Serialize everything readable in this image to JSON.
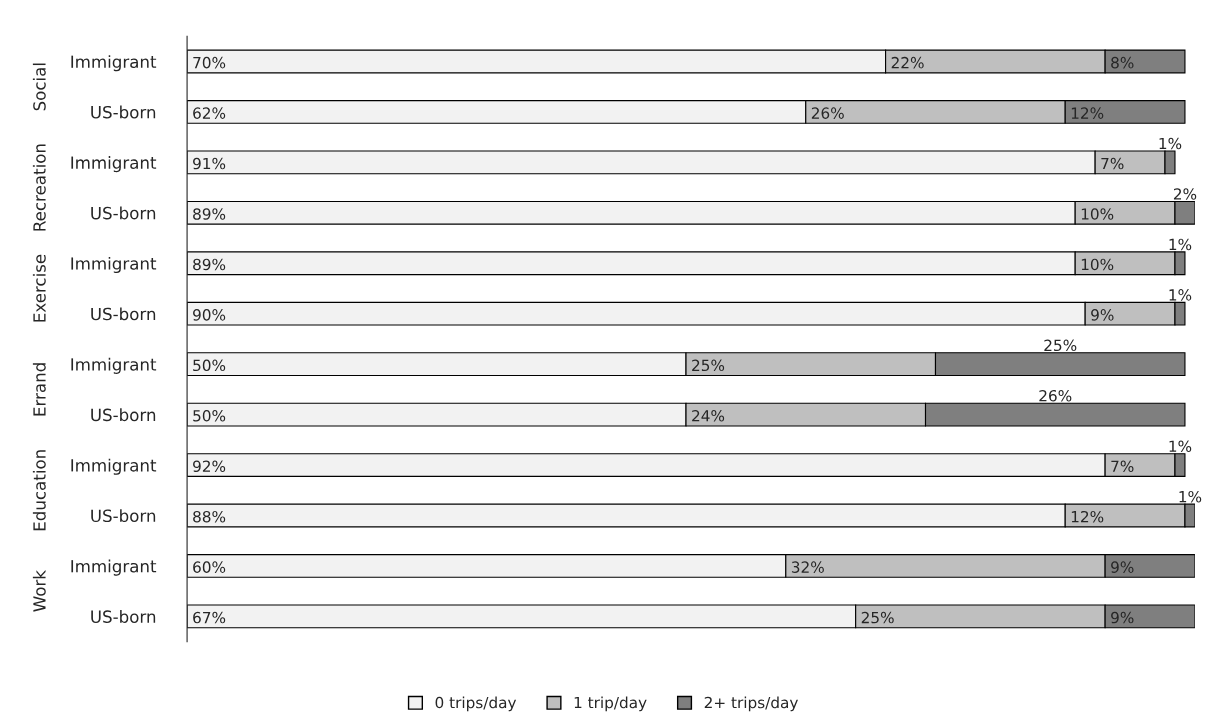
{
  "chart_data": {
    "type": "bar",
    "orientation": "horizontal",
    "stacked": true,
    "data_labels": true,
    "legend": "bottom",
    "grid": false,
    "categories": [
      "Immigrant",
      "US-born",
      "Immigrant",
      "US-born",
      "Immigrant",
      "US-born",
      "Immigrant",
      "US-born",
      "Immigrant",
      "US-born",
      "Immigrant",
      "US-born"
    ],
    "annotations": [
      "Social",
      "Recreation",
      "Exercise",
      "Errand",
      "Education",
      "Work"
    ],
    "series": [
      {
        "name": "0 trips/day",
        "color": "#f2f2f2",
        "values": [
          70,
          62,
          91,
          89,
          89,
          90,
          50,
          50,
          92,
          88,
          60,
          67
        ],
        "value_labels": [
          "70%",
          "62%",
          "91%",
          "89%",
          "89%",
          "90%",
          "50%",
          "50%",
          "92%",
          "88%",
          "60%",
          "67%"
        ]
      },
      {
        "name": "1 trip/day",
        "color": "#bfbfbf",
        "values": [
          22,
          26,
          7,
          10,
          10,
          9,
          25,
          24,
          7,
          12,
          32,
          25
        ],
        "value_labels": [
          "22%",
          "26%",
          "7%",
          "10%",
          "10%",
          "9%",
          "25%",
          "24%",
          "7%",
          "12%",
          "32%",
          "25%"
        ]
      },
      {
        "name": "2+ trips/day",
        "color": "#7f7f7f",
        "values": [
          8,
          12,
          1,
          2,
          1,
          1,
          25,
          26,
          1,
          1,
          9,
          9
        ],
        "value_labels": [
          "8%",
          "12%",
          "1%",
          "2%",
          "1%",
          "1%",
          "25%",
          "26%",
          "1%",
          "1%",
          "9%",
          "9%"
        ]
      }
    ]
  }
}
